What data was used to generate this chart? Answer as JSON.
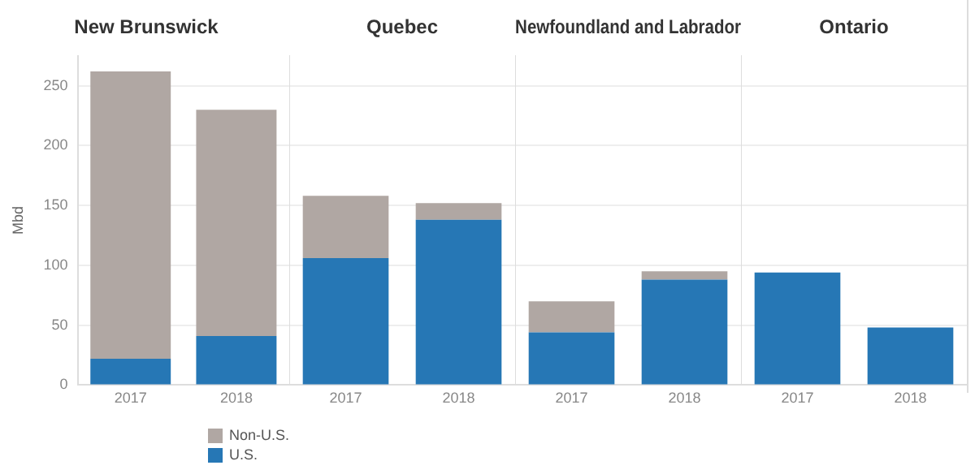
{
  "chart_data": [
    {
      "type": "bar",
      "title": "New Brunswick",
      "ylabel": "Mbd",
      "categories": [
        "2017",
        "2018"
      ],
      "stacked": true,
      "ylim": [
        0,
        275
      ],
      "yticks": [
        0,
        50,
        100,
        150,
        200,
        250
      ],
      "grid": "y",
      "legend": "bottom",
      "series": [
        {
          "name": "U.S.",
          "color": "#2677b5",
          "values": [
            22,
            41
          ]
        },
        {
          "name": "Non-U.S.",
          "color": "#b0a7a3",
          "values": [
            240,
            189
          ]
        }
      ]
    },
    {
      "type": "bar",
      "title": "Quebec",
      "categories": [
        "2017",
        "2018"
      ],
      "stacked": true,
      "ylim": [
        0,
        275
      ],
      "yticks": [
        0,
        50,
        100,
        150,
        200,
        250
      ],
      "grid": "y",
      "tick_labels": "x",
      "series": [
        {
          "color": "#2677b5",
          "values": [
            106,
            138
          ]
        },
        {
          "color": "#b0a7a3",
          "values": [
            52,
            14
          ]
        }
      ]
    },
    {
      "type": "bar",
      "title": "Newfoundland and Labrador",
      "categories": [
        "2017",
        "2018"
      ],
      "stacked": true,
      "ylim": [
        0,
        275
      ],
      "yticks": [
        0,
        50,
        100,
        150,
        200,
        250
      ],
      "grid": "y",
      "tick_labels": "x",
      "series": [
        {
          "color": "#2677b5",
          "values": [
            44,
            88
          ]
        },
        {
          "color": "#b0a7a3",
          "values": [
            26,
            7
          ]
        }
      ]
    },
    {
      "type": "bar",
      "title": "Ontario",
      "categories": [
        "2017",
        "2018"
      ],
      "stacked": true,
      "ylim": [
        0,
        275
      ],
      "yticks": [
        0,
        50,
        100,
        150,
        200,
        250
      ],
      "grid": "y",
      "tick_labels": "x",
      "series": [
        {
          "color": "#2677b5",
          "values": [
            94,
            48
          ]
        },
        {
          "color": "#b0a7a3",
          "values": [
            0,
            0
          ]
        }
      ]
    }
  ]
}
